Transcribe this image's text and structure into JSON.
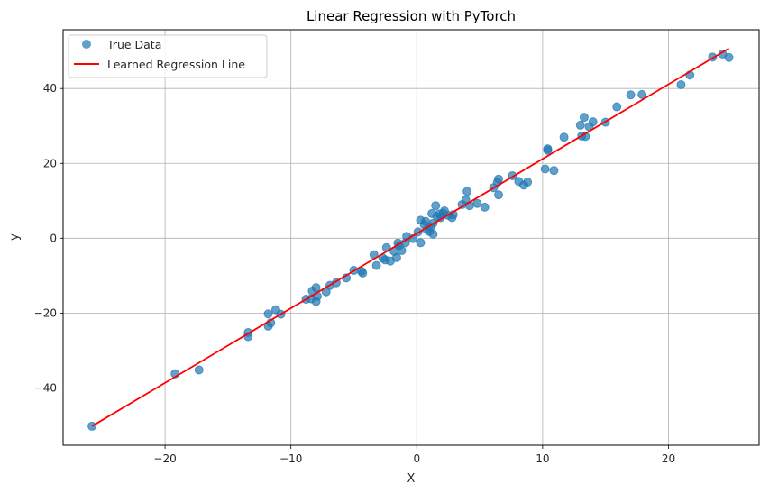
{
  "chart_data": {
    "type": "scatter",
    "title": "Linear Regression with PyTorch",
    "xlabel": "X",
    "ylabel": "y",
    "xlim": [
      -28.1,
      27.2
    ],
    "ylim": [
      -55.3,
      55.7
    ],
    "xticks": [
      -20,
      -10,
      0,
      10,
      20
    ],
    "yticks": [
      -40,
      -20,
      0,
      20,
      40
    ],
    "grid": true,
    "legend_position": "top-left",
    "series": [
      {
        "name": "True Data",
        "kind": "scatter",
        "color": "#1f77b4",
        "points": [
          [
            -25.8,
            -50.2
          ],
          [
            -19.2,
            -36.2
          ],
          [
            -17.3,
            -35.2
          ],
          [
            -13.4,
            -25.2
          ],
          [
            -13.4,
            -26.3
          ],
          [
            -11.8,
            -20.2
          ],
          [
            -11.8,
            -23.5
          ],
          [
            -11.6,
            -22.6
          ],
          [
            -11.2,
            -19.1
          ],
          [
            -10.8,
            -20.3
          ],
          [
            -8.8,
            -16.3
          ],
          [
            -8.4,
            -16.2
          ],
          [
            -8.3,
            -14.1
          ],
          [
            -8.0,
            -13.2
          ],
          [
            -8.0,
            -16.9
          ],
          [
            -7.9,
            -15.5
          ],
          [
            -7.2,
            -14.3
          ],
          [
            -6.9,
            -12.6
          ],
          [
            -6.4,
            -11.9
          ],
          [
            -5.6,
            -10.6
          ],
          [
            -5.0,
            -8.6
          ],
          [
            -4.4,
            -8.8
          ],
          [
            -4.3,
            -9.3
          ],
          [
            -3.4,
            -4.4
          ],
          [
            -3.2,
            -7.3
          ],
          [
            -2.7,
            -5.3
          ],
          [
            -2.5,
            -5.8
          ],
          [
            -2.4,
            -2.5
          ],
          [
            -2.1,
            -6.1
          ],
          [
            -1.8,
            -3.5
          ],
          [
            -1.6,
            -5.2
          ],
          [
            -1.5,
            -1.3
          ],
          [
            -1.4,
            -2.0
          ],
          [
            -1.2,
            -3.3
          ],
          [
            -0.9,
            -1.2
          ],
          [
            -0.8,
            0.5
          ],
          [
            -0.3,
            -0.1
          ],
          [
            0.1,
            1.7
          ],
          [
            0.3,
            4.8
          ],
          [
            0.3,
            -1.2
          ],
          [
            0.6,
            3.6
          ],
          [
            0.7,
            4.5
          ],
          [
            0.8,
            2.3
          ],
          [
            1.0,
            1.8
          ],
          [
            1.1,
            3.1
          ],
          [
            1.2,
            6.6
          ],
          [
            1.3,
            4.0
          ],
          [
            1.3,
            1.1
          ],
          [
            1.5,
            8.7
          ],
          [
            1.6,
            5.8
          ],
          [
            1.8,
            6.5
          ],
          [
            1.9,
            5.5
          ],
          [
            2.1,
            6.7
          ],
          [
            2.2,
            7.3
          ],
          [
            2.5,
            6.1
          ],
          [
            2.8,
            5.5
          ],
          [
            2.9,
            6.3
          ],
          [
            3.6,
            9.0
          ],
          [
            3.9,
            10.2
          ],
          [
            4.0,
            12.5
          ],
          [
            4.2,
            8.7
          ],
          [
            4.8,
            9.3
          ],
          [
            5.4,
            8.3
          ],
          [
            6.1,
            13.5
          ],
          [
            6.4,
            14.9
          ],
          [
            6.5,
            15.8
          ],
          [
            6.5,
            11.6
          ],
          [
            7.6,
            16.7
          ],
          [
            8.1,
            15.2
          ],
          [
            8.5,
            14.2
          ],
          [
            8.8,
            15.0
          ],
          [
            10.2,
            18.5
          ],
          [
            10.4,
            23.5
          ],
          [
            10.4,
            23.9
          ],
          [
            10.9,
            18.1
          ],
          [
            11.7,
            27.0
          ],
          [
            13.0,
            30.2
          ],
          [
            13.1,
            27.3
          ],
          [
            13.3,
            32.3
          ],
          [
            13.4,
            27.2
          ],
          [
            13.7,
            29.8
          ],
          [
            14.0,
            31.1
          ],
          [
            15.0,
            31.0
          ],
          [
            15.9,
            35.1
          ],
          [
            17.0,
            38.3
          ],
          [
            17.9,
            38.4
          ],
          [
            21.0,
            41.0
          ],
          [
            21.7,
            43.6
          ],
          [
            23.5,
            48.4
          ],
          [
            24.3,
            49.2
          ],
          [
            24.8,
            48.3
          ]
        ]
      },
      {
        "name": "Learned Regression Line",
        "kind": "line",
        "color": "#ff0000",
        "points": [
          [
            -25.8,
            -50.2
          ],
          [
            24.8,
            50.7
          ]
        ]
      }
    ]
  }
}
